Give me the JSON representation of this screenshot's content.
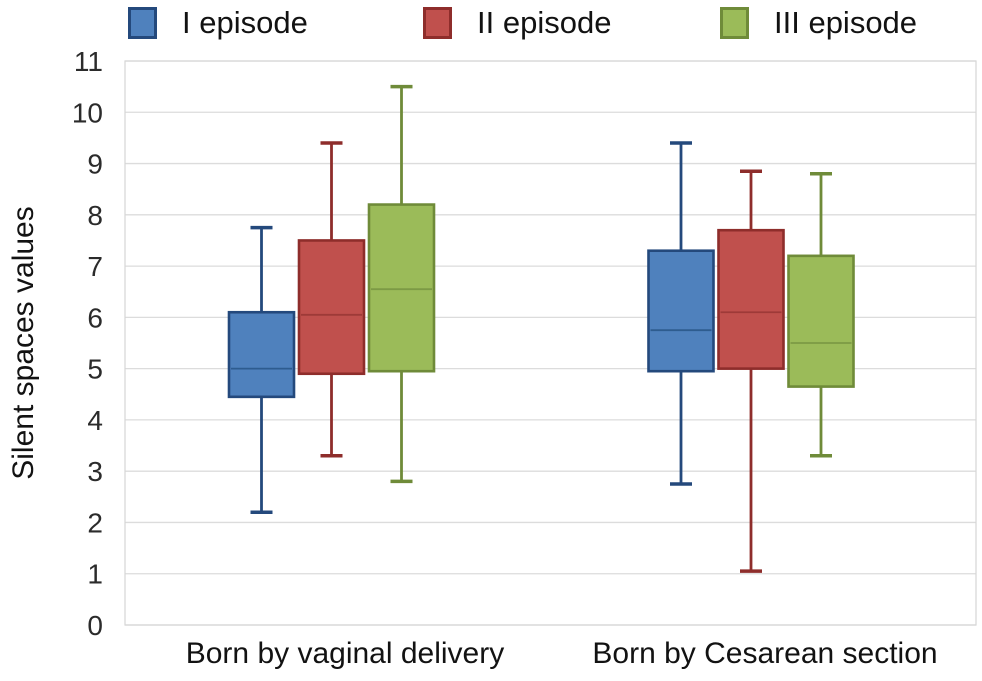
{
  "chart_data": {
    "type": "boxplot",
    "ylabel": "Silent spaces values",
    "ylim": [
      0,
      11
    ],
    "yticks": [
      0,
      1,
      2,
      3,
      4,
      5,
      6,
      7,
      8,
      9,
      10,
      11
    ],
    "grid": true,
    "legend_position": "top",
    "categories": [
      "Born by vaginal delivery",
      "Born by Cesarean section"
    ],
    "legend": [
      "I episode",
      "II episode",
      "III episode"
    ],
    "series": [
      {
        "name": "I episode",
        "fill": "#4f81bd",
        "stroke": "#24497c",
        "median_stroke": "#2e5c8f",
        "boxes": [
          {
            "category": "Born by vaginal delivery",
            "min": 2.2,
            "q1": 4.45,
            "median": 5.0,
            "q3": 6.1,
            "max": 7.75
          },
          {
            "category": "Born by Cesarean section",
            "min": 2.75,
            "q1": 4.95,
            "median": 5.75,
            "q3": 7.3,
            "max": 9.4
          }
        ]
      },
      {
        "name": "II episode",
        "fill": "#c0504d",
        "stroke": "#8e2d2b",
        "median_stroke": "#9e3a38",
        "boxes": [
          {
            "category": "Born by vaginal delivery",
            "min": 3.3,
            "q1": 4.9,
            "median": 6.05,
            "q3": 7.5,
            "max": 9.4
          },
          {
            "category": "Born by Cesarean section",
            "min": 1.05,
            "q1": 5.0,
            "median": 6.1,
            "q3": 7.7,
            "max": 8.85
          }
        ]
      },
      {
        "name": "III episode",
        "fill": "#9bbb59",
        "stroke": "#6f8b39",
        "median_stroke": "#7c9a45",
        "boxes": [
          {
            "category": "Born by vaginal delivery",
            "min": 2.8,
            "q1": 4.95,
            "median": 6.55,
            "q3": 8.2,
            "max": 10.5
          },
          {
            "category": "Born by Cesarean section",
            "min": 3.3,
            "q1": 4.65,
            "median": 5.5,
            "q3": 7.2,
            "max": 8.8
          }
        ]
      }
    ],
    "colors": {
      "gridline": "#dcdcdc",
      "plot_border": "#d6d6d6",
      "tick_text": "#2b2b2b",
      "label_text": "#121212"
    }
  }
}
